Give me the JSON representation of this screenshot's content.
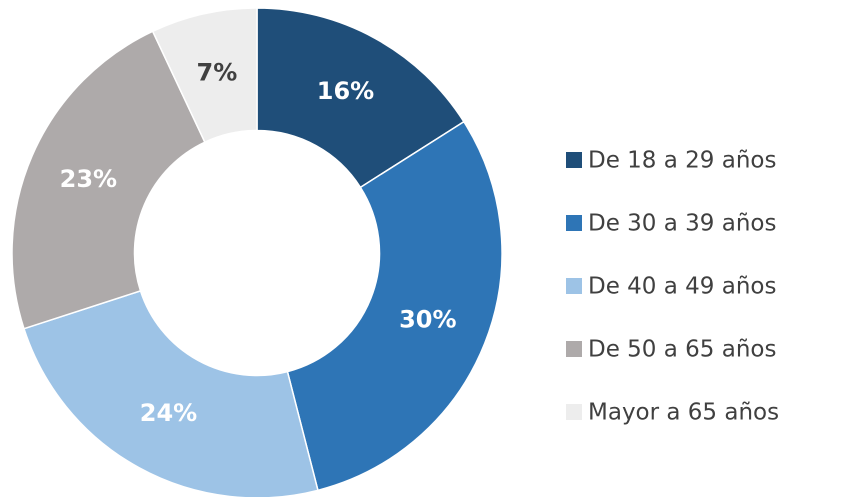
{
  "chart_data": {
    "type": "pie",
    "hole": 0.5,
    "categories": [
      "De 18 a 29 años",
      "De 30 a 39 años",
      "De 40 a 49 años",
      "De 50 a 65 años",
      "Mayor a 65 años"
    ],
    "values": [
      16,
      30,
      24,
      23,
      7
    ],
    "value_labels": [
      "16%",
      "30%",
      "24%",
      "23%",
      "7%"
    ],
    "colors": [
      "#1f4e79",
      "#2e75b6",
      "#9dc3e6",
      "#aeaaaa",
      "#ededed"
    ],
    "legend": "right"
  }
}
